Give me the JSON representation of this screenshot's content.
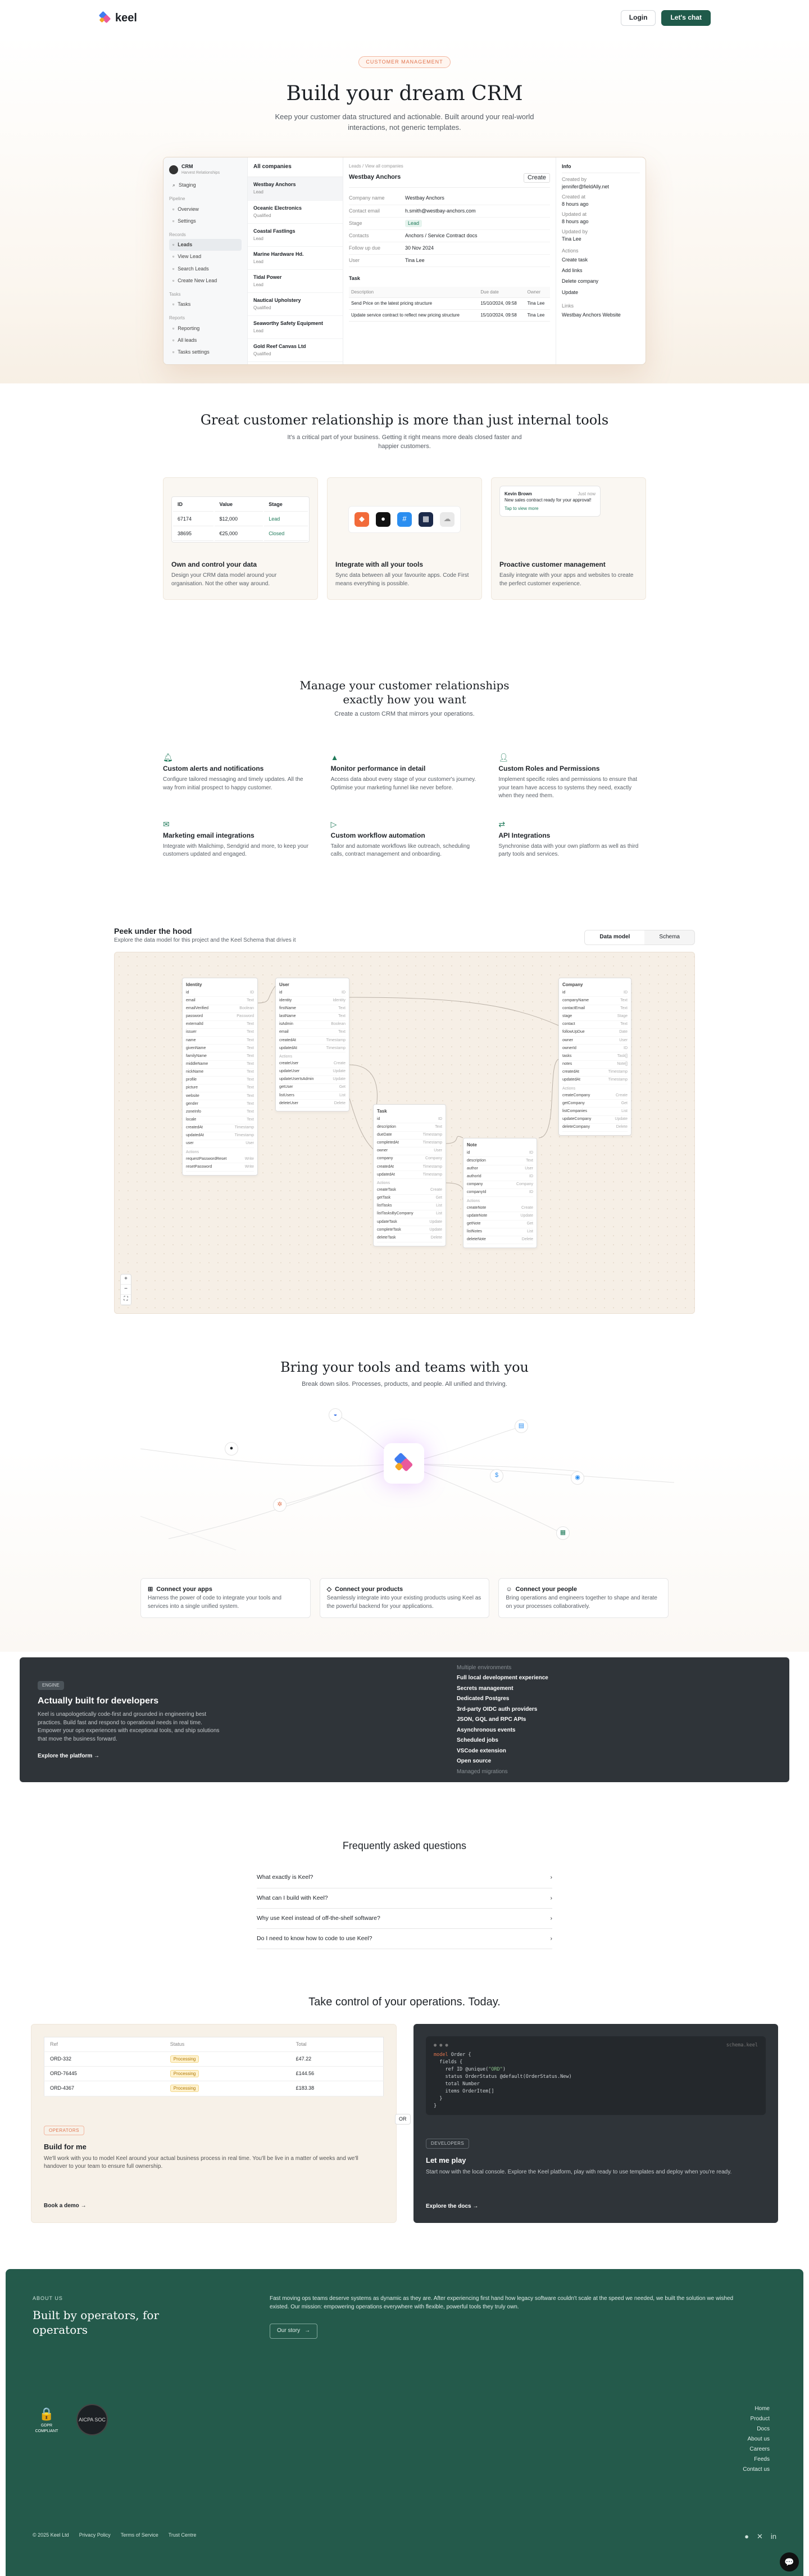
{
  "nav": {
    "brand": "keel",
    "login": "Login",
    "cta": "Let's chat"
  },
  "hero": {
    "pill": "CUSTOMER MANAGEMENT",
    "title": "Build your dream CRM",
    "subtitle": "Keep your customer data structured and actionable. Built around your real-world interactions, not generic templates."
  },
  "app": {
    "workspace": "CRM",
    "workspace_sub": "Harvest Relationships",
    "breadcrumb": "Leads  /  View all companies",
    "side_groups": [
      {
        "label": "Pipeline",
        "items": [
          "Overview",
          "Settings"
        ]
      },
      {
        "label": "Records",
        "items": [
          "Leads",
          "View Lead",
          "Search Leads",
          "Create New Lead"
        ]
      },
      {
        "label": "Tasks",
        "items": [
          "Tasks"
        ]
      },
      {
        "label": "Reports",
        "items": [
          "Reporting",
          "All leads",
          "Tasks settings"
        ]
      }
    ],
    "search": "Staging",
    "list_title": "All companies",
    "companies": [
      {
        "name": "Westbay Anchors",
        "stage": "Lead"
      },
      {
        "name": "Oceanic Electronics",
        "stage": "Qualified"
      },
      {
        "name": "Coastal Fastlings",
        "stage": "Lead"
      },
      {
        "name": "Marine Hardware Hd.",
        "stage": "Lead"
      },
      {
        "name": "Tidal Power",
        "stage": "Lead"
      },
      {
        "name": "Nautical Upholstery",
        "stage": "Qualified"
      },
      {
        "name": "Seaworthy Safety Equipment",
        "stage": "Lead"
      },
      {
        "name": "Gold Reef Canvas Ltd",
        "stage": "Qualified"
      }
    ],
    "detail_title": "Westbay Anchors",
    "create": "Create",
    "fields": [
      {
        "k": "Company name",
        "v": "Westbay Anchors"
      },
      {
        "k": "Contact email",
        "v": "h.smith@westbay-anchors.com"
      },
      {
        "k": "Stage",
        "v": "Lead"
      },
      {
        "k": "Contacts",
        "v": "Anchors / Service Contract docs"
      },
      {
        "k": "Follow up due",
        "v": "30 Nov 2024"
      },
      {
        "k": "User",
        "v": "Tina Lee"
      }
    ],
    "task_title": "Task",
    "task_cols": [
      "Description",
      "Due date",
      "Owner"
    ],
    "tasks": [
      {
        "d": "Send Price on the latest pricing structure",
        "due": "15/10/2024, 09:58",
        "o": "Tina Lee"
      },
      {
        "d": "Update service contract to reflect new pricing structure",
        "due": "15/10/2024, 09:58",
        "o": "Tina Lee"
      }
    ],
    "meta_tab": "Info",
    "meta": [
      {
        "k": "Created by",
        "v": "jennifer@fieldAlly.net"
      },
      {
        "k": "Created at",
        "v": "8 hours ago"
      },
      {
        "k": "Updated at",
        "v": "8 hours ago"
      },
      {
        "k": "Updated by",
        "v": "Tina Lee"
      }
    ],
    "actions": [
      "Create task",
      "Add links",
      "Delete company",
      "Update"
    ],
    "link": "Westbay Anchors Website"
  },
  "sec2": {
    "title": "Great customer relationship is more than just internal tools",
    "subtitle": "It's a critical part of your business. Getting it right means more deals closed faster and happier customers.",
    "table": {
      "cols": [
        "ID",
        "Value",
        "Stage"
      ],
      "rows": [
        [
          "67174",
          "$12,000",
          "Lead"
        ],
        [
          "38695",
          "€25,000",
          "Closed"
        ]
      ]
    },
    "notif": {
      "name": "Kevin Brown",
      "time": "Just now",
      "msg": "New sales contract ready for your approval!",
      "action": "Tap to view more"
    },
    "cards": [
      {
        "title": "Own and control your data",
        "text": "Design your CRM data model around your organisation. Not the other way around."
      },
      {
        "title": "Integrate with all your tools",
        "text": "Sync data between all your favourite apps. Code First means everything is possible."
      },
      {
        "title": "Proactive customer management",
        "text": "Easily integrate with your apps and websites to create the perfect customer experience."
      }
    ]
  },
  "features": {
    "title": "Manage your customer relationships exactly how you want",
    "subtitle": "Create a custom CRM that mirrors your operations.",
    "items": [
      {
        "icon": "bell-icon",
        "title": "Custom alerts and notifications",
        "text": "Configure tailored messaging and timely updates. All the way from initial prospect to happy customer."
      },
      {
        "icon": "chart-icon",
        "title": "Monitor performance in detail",
        "text": "Access data about every stage of your customer's journey. Optimise your marketing funnel like never before."
      },
      {
        "icon": "user-icon",
        "title": "Custom Roles and Permissions",
        "text": "Implement specific roles and permissions to ensure that your team have access to systems they need, exactly when they need them."
      },
      {
        "icon": "mail-icon",
        "title": "Marketing email integrations",
        "text": "Integrate with Mailchimp, Sendgrid and more, to keep your customers updated and engaged."
      },
      {
        "icon": "flow-icon",
        "title": "Custom workflow automation",
        "text": "Tailor and automate workflows like outreach, scheduling calls, contract management and onboarding."
      },
      {
        "icon": "api-icon",
        "title": "API Integrations",
        "text": "Synchronise data with your own platform as well as third party tools and services."
      }
    ]
  },
  "dm": {
    "title": "Peek under the hood",
    "subtitle": "Explore the data model for this project and the Keel Schema that drives it",
    "tabs": [
      "Data model",
      "Schema"
    ]
  },
  "tools": {
    "title": "Bring your tools and teams with you",
    "subtitle": "Break down silos. Processes, products, and people. All unified and thriving.",
    "cards": [
      {
        "title": "Connect your apps",
        "text": "Harness the power of code to integrate your tools and services into a single unified system."
      },
      {
        "title": "Connect your products",
        "text": "Seamlessly integrate into your existing products using Keel as the powerful backend for your applications."
      },
      {
        "title": "Connect your people",
        "text": "Bring operations and engineers together to shape and iterate on your processes collaboratively."
      }
    ]
  },
  "dev": {
    "badge": "ENGINE",
    "title": "Actually built for developers",
    "text": "Keel is unapologetically code-first and grounded in engineering best practices. Build fast and respond to operational needs in real time. Empower your ops experiences with exceptional tools, and ship solutions that move the business forward.",
    "link": "Explore the platform →",
    "list": [
      "Multiple environments",
      "Full local development experience",
      "Secrets management",
      "Dedicated Postgres",
      "3rd-party OIDC auth providers",
      "JSON, GQL and RPC APIs",
      "Asynchronous events",
      "Scheduled jobs",
      "VSCode extension",
      "Open source",
      "Managed migrations"
    ]
  },
  "faq": {
    "title": "Frequently asked questions",
    "items": [
      "What exactly is Keel?",
      "What can I build with Keel?",
      "Why use Keel instead of off-the-shelf software?",
      "Do I need to know how to code to use Keel?"
    ]
  },
  "cta": {
    "title": "Take control of your operations. Today.",
    "table": {
      "cols": [
        "Ref",
        "Status",
        "Total"
      ],
      "rows": [
        [
          "ORD-332",
          "Processing",
          "£47.22"
        ],
        [
          "ORD-76445",
          "Processing",
          "£144.56"
        ],
        [
          "ORD-4367",
          "Processing",
          "£183.38"
        ]
      ]
    },
    "left": {
      "badge": "OPERATORS",
      "title": "Build for me",
      "text": "We'll work with you to model Keel around your actual business process in real time. You'll be live in a matter of weeks and we'll handover to your team to ensure full ownership.",
      "link": "Book a demo →"
    },
    "or": "OR",
    "right": {
      "badge": "DEVELOPERS",
      "title": "Let me play",
      "text": "Start now with the local console. Explore the Keel platform, play with ready to use templates and deploy when you're ready.",
      "link": "Explore the docs →",
      "file": "schema.keel"
    }
  },
  "footer": {
    "about": "ABOUT US",
    "title": "Built by operators, for operators",
    "text": "Fast moving ops teams deserve systems as dynamic as they are. After experiencing first hand how legacy software couldn't scale at the speed we needed, we built the solution we wished existed. Our mission: empowering operations everywhere with flexible, powerful tools they truly own.",
    "story": "Our story",
    "links": [
      "Home",
      "Product",
      "Docs",
      "About us",
      "Careers",
      "Feeds",
      "Contact us"
    ],
    "gdpr": "GDPR COMPLIANT",
    "soc": "AICPA SOC",
    "copy": "© 2025 Keel Ltd",
    "privacy": "Privacy Policy",
    "terms": "Terms of Service",
    "trust": "Trust Centre"
  },
  "colors": {
    "accent": "#1f5a4a",
    "orange": "#e0744e",
    "dark": "#2f3439"
  }
}
